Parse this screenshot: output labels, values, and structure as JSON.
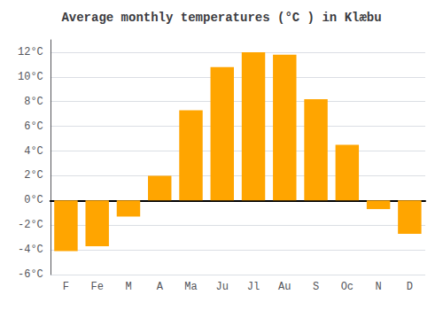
{
  "chart_data": {
    "type": "bar",
    "title": "Average monthly temperatures (°C ) in Klæbu",
    "categories": [
      "F",
      "Fe",
      "M",
      "A",
      "Ma",
      "Ju",
      "Jl",
      "Au",
      "S",
      "Oc",
      "N",
      "D"
    ],
    "values": [
      -4.1,
      -3.7,
      -1.3,
      2.0,
      7.3,
      10.8,
      12.0,
      11.8,
      8.2,
      4.5,
      -0.7,
      -2.7
    ],
    "color": "#FFA500",
    "ylim": [
      -6,
      13
    ],
    "yticks": [
      {
        "value": -6,
        "label": "-6°C"
      },
      {
        "value": -4,
        "label": "-4°C"
      },
      {
        "value": -2,
        "label": "-2°C"
      },
      {
        "value": 0,
        "label": "0°C"
      },
      {
        "value": 2,
        "label": "2°C"
      },
      {
        "value": 4,
        "label": "4°C"
      },
      {
        "value": 6,
        "label": "6°C"
      },
      {
        "value": 8,
        "label": "8°C"
      },
      {
        "value": 10,
        "label": "10°C"
      },
      {
        "value": 12,
        "label": "12°C"
      }
    ],
    "grid": true
  }
}
